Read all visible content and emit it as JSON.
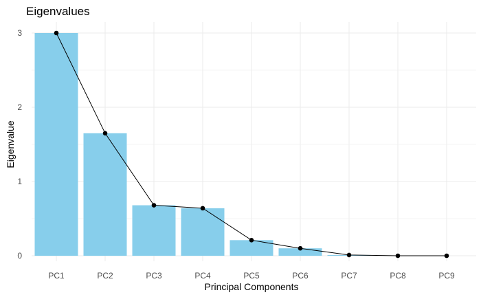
{
  "chart_data": {
    "type": "bar",
    "title": "Eigenvalues",
    "xlabel": "Principal Components",
    "ylabel": "Eigenvalue",
    "categories": [
      "PC1",
      "PC2",
      "PC3",
      "PC4",
      "PC5",
      "PC6",
      "PC7",
      "PC8",
      "PC9"
    ],
    "values": [
      3.0,
      1.65,
      0.68,
      0.64,
      0.21,
      0.1,
      0.01,
      0.0,
      0.0
    ],
    "overlay": "line-with-points",
    "ylim": [
      0,
      3.1
    ],
    "yticks": [
      0,
      1,
      2,
      3
    ],
    "grid": true,
    "colors": {
      "bar": "#87ceeb",
      "line": "#000000",
      "point": "#000000"
    }
  }
}
